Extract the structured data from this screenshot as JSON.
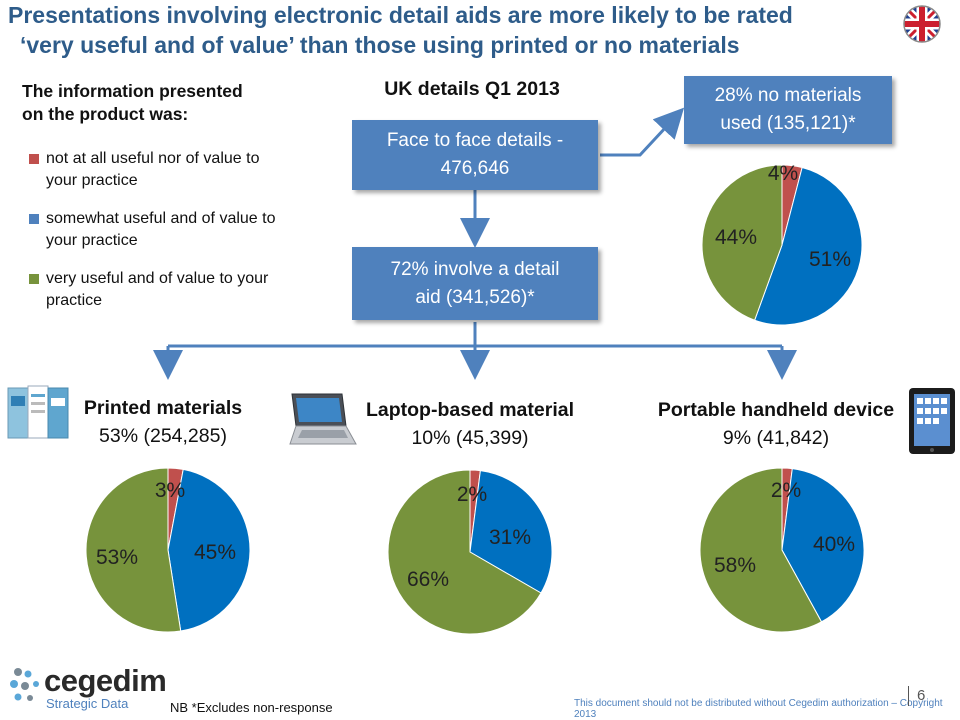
{
  "title_line1": "Presentations involving electronic detail aids are more likely to be rated",
  "title_line2": "‘very useful and of value’ than those using printed or no materials",
  "intro_line1": "The information presented",
  "intro_line2": "on the product was:",
  "legend": [
    {
      "line1": "not at all useful nor of value to",
      "line2": "your practice",
      "color": "#c0504d"
    },
    {
      "line1": "somewhat useful and of value to",
      "line2": "your practice",
      "color": "#4f81bd"
    },
    {
      "line1": "very useful and of value to your",
      "line2": "practice",
      "color": "#77933c"
    }
  ],
  "uk_heading": "UK details Q1 2013",
  "box_face_line1": "Face to face details -",
  "box_face_line2": "476,646",
  "box_detail_line1": "72% involve a detail",
  "box_detail_line2": "aid (341,526)*",
  "box_nomat_line1": "28% no materials",
  "box_nomat_line2": "used (135,121)*",
  "segments": [
    {
      "name": "Printed materials",
      "stat": "53% (254,285)"
    },
    {
      "name": "Laptop-based material",
      "stat": "10% (45,399)"
    },
    {
      "name": "Portable handheld device",
      "stat": "9% (41,842)"
    }
  ],
  "colors": {
    "red": "#c0504d",
    "blue": "#0070c0",
    "green": "#77933c",
    "box": "#4f81bd"
  },
  "chart_data": [
    {
      "type": "pie",
      "name_ref": "no materials",
      "categories": [
        "not at all useful",
        "somewhat useful",
        "very useful"
      ],
      "values": [
        4,
        51,
        44
      ],
      "labels": [
        "4%",
        "51%",
        "44%"
      ]
    },
    {
      "type": "pie",
      "name_ref": "Printed materials",
      "categories": [
        "not at all useful",
        "somewhat useful",
        "very useful"
      ],
      "values": [
        3,
        45,
        53
      ],
      "labels": [
        "3%",
        "45%",
        "53%"
      ]
    },
    {
      "type": "pie",
      "name_ref": "Laptop-based material",
      "categories": [
        "not at all useful",
        "somewhat useful",
        "very useful"
      ],
      "values": [
        2,
        31,
        66
      ],
      "labels": [
        "2%",
        "31%",
        "66%"
      ]
    },
    {
      "type": "pie",
      "name_ref": "Portable handheld device",
      "categories": [
        "not at all useful",
        "somewhat useful",
        "very useful"
      ],
      "values": [
        2,
        40,
        58
      ],
      "labels": [
        "2%",
        "40%",
        "58%"
      ]
    }
  ],
  "footer_note": "NB *Excludes non-response",
  "copyright": "This document should not be distributed without Cegedim authorization – Copyright 2013",
  "page_number": "6",
  "logo_name": "cegedim",
  "logo_sub": "Strategic Data"
}
